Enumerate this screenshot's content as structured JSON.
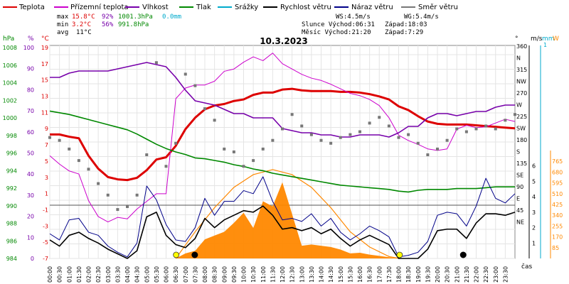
{
  "legend": [
    {
      "label": "Teplota",
      "color": "#dd0000"
    },
    {
      "label": "Přízemní teplota",
      "color": "#cc00cc"
    },
    {
      "label": "Vlhkost",
      "color": "#7700aa"
    },
    {
      "label": "Tlak",
      "color": "#008800"
    },
    {
      "label": "Srážky",
      "color": "#00aacc"
    },
    {
      "label": "Rychlost větru",
      "color": "#000000"
    },
    {
      "label": "Náraz větru",
      "color": "#000088"
    },
    {
      "label": "Směr větru",
      "color": "#777777"
    }
  ],
  "stats": {
    "max_label": "max",
    "max_temp": "15.8°C",
    "max_hum": "92%",
    "max_press": "1001.3hPa",
    "max_rain": "0.0mm",
    "min_label": "min",
    "min_temp": "3.2°C",
    "min_hum": "56%",
    "min_press": "991.8hPa",
    "avg_label": "avg",
    "avg_temp": "11°C",
    "ws": "WS:4.5m/s",
    "wg": "WG:5.4m/s",
    "sun": "Slunce Východ:06:31",
    "sun_set": "Západ:18:03",
    "moon": "Měsíc  Východ:21:20",
    "moon_set": "Západ:7:29"
  },
  "chart_data": {
    "type": "line",
    "title": "10.3.2023",
    "xlabel": "čas",
    "x_ticks": [
      "00:00",
      "00:30",
      "01:00",
      "01:30",
      "02:00",
      "02:30",
      "03:00",
      "03:30",
      "04:00",
      "04:30",
      "05:00",
      "05:30",
      "06:00",
      "06:30",
      "07:00",
      "07:30",
      "08:00",
      "08:30",
      "09:00",
      "09:30",
      "10:00",
      "10:30",
      "11:00",
      "11:30",
      "12:00",
      "12:30",
      "13:00",
      "13:30",
      "14:00",
      "14:30",
      "15:00",
      "15:30",
      "16:00",
      "16:30",
      "17:00",
      "17:30",
      "18:00",
      "18:30",
      "19:00",
      "19:30",
      "20:00",
      "20:30",
      "21:00",
      "21:30",
      "22:00",
      "22:30",
      "23:00",
      "23:30"
    ],
    "axes": {
      "pressure": {
        "label": "hPa",
        "ylim": [
          984,
          1009
        ],
        "ticks": [
          "1008",
          "1006",
          "1004",
          "1002",
          "1000",
          "998",
          "996",
          "994",
          "992",
          "990",
          "988",
          "986",
          "984"
        ],
        "color": "#008800"
      },
      "humidity": {
        "label": "%",
        "ylim": [
          0,
          100
        ],
        "ticks": [
          "100",
          "90",
          "80",
          "70",
          "60",
          "50",
          "40",
          "30",
          "20",
          "10",
          "0"
        ],
        "color": "#7700aa"
      },
      "temperature": {
        "label": "°C",
        "ylim": [
          -7,
          21
        ],
        "ticks": [
          "19",
          "17",
          "15",
          "13",
          "11",
          "9",
          "7",
          "5",
          "3",
          "1",
          "-1",
          "-3",
          "-5",
          "-7"
        ],
        "color": "#dd0000"
      },
      "direction": {
        "label": "°",
        "ticks": [
          "360",
          "N",
          "315",
          "NW",
          "270",
          "W",
          "225",
          "SW",
          "180",
          "S",
          "135",
          "SE",
          "90",
          "E",
          "45",
          "NE"
        ],
        "ticks_values": [
          360,
          315,
          270,
          225,
          180,
          135,
          90,
          45
        ]
      },
      "wind": {
        "label": "m/s",
        "ylim": [
          0,
          7
        ],
        "ticks": [
          "6",
          "5",
          "4",
          "3",
          "2",
          "1"
        ],
        "color": "#000000"
      },
      "rain": {
        "label": "mm",
        "ticks": [
          "1"
        ],
        "color": "#00aacc"
      },
      "solar": {
        "label": "W",
        "ylim": [
          0,
          850
        ],
        "ticks": [
          "765",
          "680",
          "595",
          "510",
          "425",
          "340",
          "255",
          "170",
          "85"
        ],
        "color": "#ff8800"
      }
    },
    "series": [
      {
        "name": "Teplota",
        "color": "#dd0000",
        "axis": "temperature",
        "x": [
          0,
          0.5,
          1,
          1.5,
          2,
          2.5,
          3,
          3.5,
          4,
          4.5,
          5,
          5.5,
          6,
          6.5,
          7,
          7.5,
          8,
          8.5,
          9,
          9.5,
          10,
          10.5,
          11,
          11.5,
          12,
          12.5,
          13,
          13.5,
          14,
          14.5,
          15,
          15.5,
          16,
          16.5,
          17,
          17.5,
          18,
          18.5,
          19,
          19.5,
          20,
          20.5,
          21,
          21.5,
          22,
          22.5,
          23,
          23.5,
          24
        ],
        "y": [
          9.3,
          9.3,
          9.0,
          8.8,
          6.5,
          4.8,
          3.7,
          3.4,
          3.3,
          3.6,
          4.6,
          6.0,
          6.3,
          7.8,
          10.0,
          11.5,
          12.6,
          13.1,
          13.3,
          13.7,
          13.9,
          14.5,
          14.8,
          14.8,
          15.2,
          15.3,
          15.1,
          15.0,
          15.0,
          15.0,
          14.9,
          14.9,
          14.8,
          14.6,
          14.3,
          13.9,
          13.0,
          12.5,
          11.7,
          11.0,
          10.7,
          10.6,
          10.6,
          10.6,
          10.5,
          10.4,
          10.3,
          10.2,
          10.1
        ]
      },
      {
        "name": "Přízemní teplota",
        "color": "#cc00cc",
        "axis": "temperature",
        "x": [
          0,
          0.5,
          1,
          1.5,
          2,
          2.5,
          3,
          3.5,
          4,
          4.5,
          5,
          5.5,
          6,
          6.5,
          7,
          7.5,
          8,
          8.5,
          9,
          9.5,
          10,
          10.5,
          11,
          11.5,
          12,
          12.5,
          13,
          13.5,
          14,
          14.5,
          15,
          15.5,
          16,
          16.5,
          17,
          17.5,
          18,
          18.5,
          19,
          19.5,
          20,
          20.5,
          21,
          21.5,
          22,
          22.5,
          23,
          23.5,
          24
        ],
        "y": [
          6.5,
          5.4,
          4.5,
          4.1,
          0.6,
          -1.5,
          -2.2,
          -1.6,
          -1.8,
          -0.5,
          0.5,
          1.5,
          1.5,
          14.0,
          15.4,
          15.8,
          15.8,
          16.3,
          17.6,
          17.9,
          18.8,
          19.5,
          19.0,
          20.0,
          18.6,
          17.9,
          17.2,
          16.7,
          16.4,
          15.9,
          15.3,
          14.7,
          14.4,
          13.9,
          13.1,
          11.5,
          9.2,
          8.5,
          8.0,
          7.4,
          7.2,
          7.4,
          10.0,
          10.5,
          10.2,
          10.3,
          10.8,
          11.3,
          11.0
        ]
      },
      {
        "name": "Vlhkost",
        "color": "#7700aa",
        "axis": "humidity",
        "x": [
          0,
          0.5,
          1,
          1.5,
          2,
          2.5,
          3,
          3.5,
          4,
          4.5,
          5,
          5.5,
          6,
          6.5,
          7,
          7.5,
          8,
          8.5,
          9,
          9.5,
          10,
          10.5,
          11,
          11.5,
          12,
          12.5,
          13,
          13.5,
          14,
          14.5,
          15,
          15.5,
          16,
          16.5,
          17,
          17.5,
          18,
          18.5,
          19,
          19.5,
          20,
          20.5,
          21,
          21.5,
          22,
          22.5,
          23,
          23.5,
          24
        ],
        "y": [
          85,
          85,
          87,
          88,
          88,
          88,
          88,
          89,
          90,
          91,
          92,
          91,
          90,
          85,
          79,
          74,
          73,
          72,
          70,
          68,
          68,
          66,
          66,
          66,
          61,
          60,
          59,
          59,
          58,
          58,
          57,
          57,
          58,
          58,
          58,
          57,
          59,
          62,
          62,
          66,
          68,
          68,
          67,
          68,
          69,
          69,
          71,
          72,
          72
        ]
      },
      {
        "name": "Tlak",
        "color": "#008800",
        "axis": "pressure",
        "x": [
          0,
          0.5,
          1,
          1.5,
          2,
          2.5,
          3,
          3.5,
          4,
          4.5,
          5,
          5.5,
          6,
          6.5,
          7,
          7.5,
          8,
          8.5,
          9,
          9.5,
          10,
          10.5,
          11,
          11.5,
          12,
          12.5,
          13,
          13.5,
          14,
          14.5,
          15,
          15.5,
          16,
          16.5,
          17,
          17.5,
          18,
          18.5,
          19,
          19.5,
          20,
          20.5,
          21,
          21.5,
          22,
          22.5,
          23,
          23.5,
          24
        ],
        "y": [
          1001.3,
          1001.1,
          1000.9,
          1000.6,
          1000.3,
          1000.0,
          999.7,
          999.4,
          999.1,
          998.6,
          998.0,
          997.4,
          996.9,
          996.5,
          996.2,
          995.8,
          995.7,
          995.5,
          995.3,
          995.0,
          994.8,
          994.5,
          994.3,
          994.0,
          993.8,
          993.6,
          993.4,
          993.2,
          993.0,
          992.8,
          992.6,
          992.5,
          992.4,
          992.3,
          992.2,
          992.1,
          991.9,
          991.8,
          992.0,
          992.1,
          992.1,
          992.1,
          992.2,
          992.2,
          992.2,
          992.3,
          992.4,
          992.4,
          992.4
        ]
      },
      {
        "name": "Rychlost větru",
        "color": "#000000",
        "axis": "wind",
        "x": [
          0,
          0.5,
          1,
          1.5,
          2,
          2.5,
          3,
          3.5,
          4,
          4.5,
          5,
          5.5,
          6,
          6.5,
          7,
          7.5,
          8,
          8.5,
          9,
          9.5,
          10,
          10.5,
          11,
          11.5,
          12,
          12.5,
          13,
          13.5,
          14,
          14.5,
          15,
          15.5,
          16,
          16.5,
          17,
          17.5,
          18,
          18.5,
          19,
          19.5,
          20,
          20.5,
          21,
          21.5,
          22,
          22.5,
          23,
          23.5,
          24
        ],
        "y": [
          1.2,
          0.8,
          1.5,
          1.7,
          1.3,
          1.0,
          0.6,
          0.3,
          0,
          0.5,
          2.7,
          3.0,
          1.5,
          0.9,
          0.7,
          1.3,
          2.6,
          2.0,
          2.5,
          2.8,
          3.1,
          3.0,
          3.4,
          2.8,
          1.9,
          2.0,
          1.8,
          2.0,
          1.6,
          1.9,
          1.3,
          0.8,
          1.2,
          1.5,
          1.2,
          0.9,
          0,
          0,
          0,
          0.6,
          1.8,
          1.9,
          1.9,
          1.3,
          2.3,
          2.9,
          2.9,
          2.8,
          3.0
        ]
      },
      {
        "name": "Náraz větru",
        "color": "#000088",
        "axis": "wind",
        "x": [
          0,
          0.5,
          1,
          1.5,
          2,
          2.5,
          3,
          3.5,
          4,
          4.5,
          5,
          5.5,
          6,
          6.5,
          7,
          7.5,
          8,
          8.5,
          9,
          9.5,
          10,
          10.5,
          11,
          11.5,
          12,
          12.5,
          13,
          13.5,
          14,
          14.5,
          15,
          15.5,
          16,
          16.5,
          17,
          17.5,
          18,
          18.5,
          19,
          19.5,
          20,
          20.5,
          21,
          21.5,
          22,
          22.5,
          23,
          23.5,
          24
        ],
        "y": [
          1.6,
          1.2,
          2.5,
          2.6,
          1.7,
          1.5,
          0.8,
          0.4,
          0.1,
          1.0,
          4.7,
          3.8,
          2.2,
          1.2,
          1.1,
          2.0,
          3.9,
          2.8,
          3.7,
          3.7,
          4.4,
          4.2,
          5.3,
          3.7,
          2.5,
          2.6,
          2.4,
          2.9,
          2.1,
          2.6,
          1.7,
          1.2,
          1.6,
          2.1,
          1.8,
          1.4,
          0.1,
          0.2,
          0.4,
          1.1,
          2.8,
          3.0,
          2.9,
          2.1,
          3.4,
          5.2,
          3.9,
          3.6,
          4.2
        ]
      },
      {
        "name": "Směr větru",
        "color": "#777777",
        "axis": "direction",
        "style": "scatter",
        "x": [
          0,
          0.5,
          1,
          1.5,
          2,
          2.5,
          3,
          3.5,
          4,
          4.5,
          5,
          5.5,
          6,
          6.5,
          7,
          7.5,
          8,
          8.5,
          9,
          9.5,
          10,
          10.5,
          11,
          11.5,
          12,
          12.5,
          13,
          13.5,
          14,
          14.5,
          15,
          15.5,
          16,
          16.5,
          17,
          17.5,
          18,
          18.5,
          19,
          19.5,
          20,
          20.5,
          21,
          21.5,
          22,
          22.5,
          23,
          23.5,
          24
        ],
        "y": [
          210,
          205,
          190,
          170,
          155,
          130,
          110,
          85,
          90,
          110,
          180,
          340,
          160,
          200,
          320,
          300,
          260,
          240,
          190,
          185,
          160,
          170,
          190,
          205,
          225,
          250,
          230,
          215,
          205,
          200,
          210,
          215,
          220,
          235,
          245,
          230,
          210,
          215,
          200,
          180,
          190,
          205,
          225,
          220,
          225,
          230,
          225,
          240,
          250
        ]
      }
    ],
    "solar_radiation": {
      "name": "sluneční záření",
      "color": "#ff8800",
      "axis": "solar",
      "x": [
        6.5,
        7,
        7.5,
        8,
        8.5,
        9,
        9.5,
        10,
        10.5,
        11,
        11.5,
        12,
        12.5,
        13,
        13.5,
        14,
        14.5,
        15,
        15.5,
        16,
        16.5,
        17,
        17.5,
        18
      ],
      "y": [
        0,
        40,
        60,
        150,
        180,
        210,
        280,
        360,
        240,
        450,
        410,
        600,
        350,
        100,
        110,
        100,
        90,
        70,
        40,
        45,
        30,
        20,
        10,
        0
      ]
    },
    "theoretical_solar": {
      "color": "#ff8800",
      "x": [
        6.5,
        7.5,
        8.5,
        9.5,
        10.5,
        11.5,
        12.5,
        13.5,
        14.5,
        15.5,
        16.5,
        17.5,
        18.05
      ],
      "y": [
        0,
        210,
        400,
        560,
        660,
        700,
        660,
        560,
        400,
        210,
        90,
        15,
        0
      ]
    },
    "markers": [
      {
        "type": "sunrise",
        "time": 6.52
      },
      {
        "type": "sunset",
        "time": 18.05
      },
      {
        "type": "moonset",
        "time": 7.48
      },
      {
        "type": "moonrise",
        "time": 21.33
      }
    ]
  }
}
